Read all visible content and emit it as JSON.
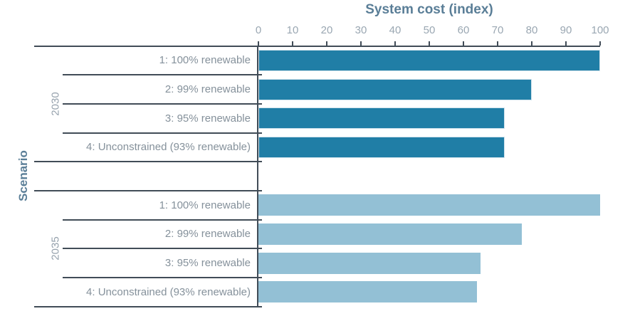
{
  "chart_data": {
    "type": "bar",
    "orientation": "horizontal",
    "title": "System cost (index)",
    "ylabel": "Scenario",
    "xlim": [
      0,
      100
    ],
    "x_ticks": [
      0,
      10,
      20,
      30,
      40,
      50,
      60,
      70,
      80,
      90,
      100
    ],
    "grid": false,
    "legend": "none",
    "categories": [
      "1: 100% renewable",
      "2: 99% renewable",
      "3: 95% renewable",
      "4: Unconstrained (93% renewable)"
    ],
    "series": [
      {
        "name": "2030",
        "color": "#207ea6",
        "values": [
          100,
          80,
          72,
          72
        ]
      },
      {
        "name": "2035",
        "color": "#93c0d5",
        "values": [
          100,
          77,
          65,
          64
        ]
      }
    ],
    "colors": {
      "axis_line": "#414c57",
      "title_text": "#5a7e97",
      "tick_text": "#9aa7b2",
      "label_text": "#85919b",
      "group_text": "#96a2ad",
      "bar_2030": "#207ea6",
      "bar_2035": "#93c0d5"
    }
  }
}
